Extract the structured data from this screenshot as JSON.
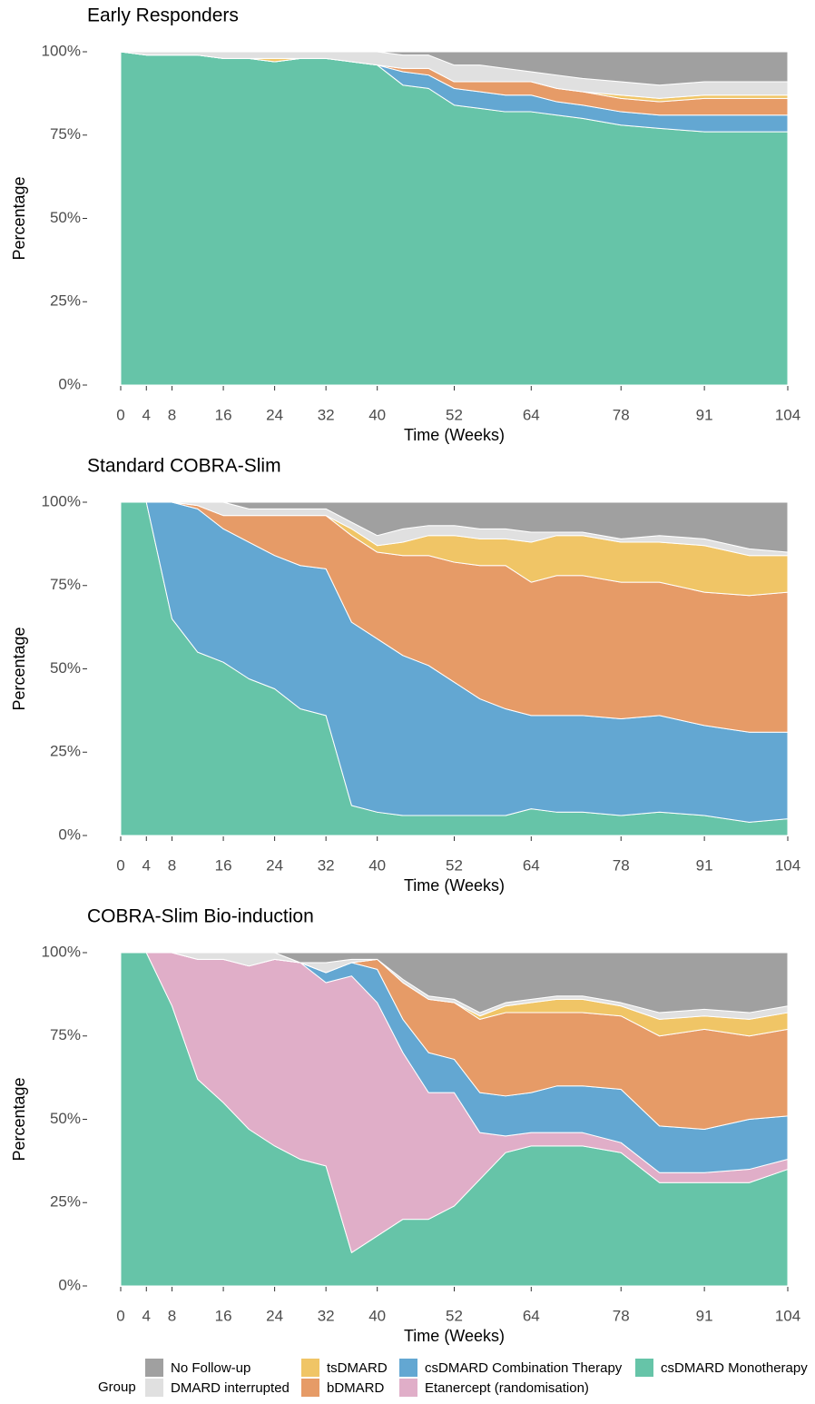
{
  "chart_data": [
    {
      "type": "area",
      "title": "Early Responders",
      "x_label": "Time (Weeks)",
      "y_label": "Percentage",
      "x": [
        0,
        4,
        8,
        12,
        16,
        20,
        24,
        28,
        32,
        36,
        40,
        44,
        48,
        52,
        56,
        60,
        64,
        68,
        72,
        78,
        84,
        91,
        98,
        104
      ],
      "xlim": [
        0,
        104
      ],
      "xticks": [
        0,
        4,
        8,
        16,
        24,
        32,
        40,
        52,
        64,
        78,
        91,
        104
      ],
      "ylim": [
        0,
        100
      ],
      "yticks": [
        {
          "value": 0,
          "label": "0%"
        },
        {
          "value": 25,
          "label": "25%"
        },
        {
          "value": 50,
          "label": "50%"
        },
        {
          "value": 75,
          "label": "75%"
        },
        {
          "value": 100,
          "label": "100%"
        }
      ],
      "series": [
        {
          "name": "No Follow-up",
          "color": "#a0a0a0",
          "values": [
            0,
            0,
            0,
            0,
            0,
            0,
            0,
            0,
            0,
            0,
            0,
            1,
            1,
            4,
            4,
            5,
            6,
            7,
            8,
            9,
            10,
            9,
            9,
            9
          ]
        },
        {
          "name": "DMARD interrupted",
          "color": "#e0e0e0",
          "values": [
            0,
            1,
            1,
            1,
            2,
            2,
            2,
            2,
            2,
            3,
            4,
            4,
            4,
            5,
            5,
            4,
            3,
            4,
            4,
            4,
            4,
            4,
            4,
            4
          ]
        },
        {
          "name": "tsDMARD",
          "color": "#f0c566",
          "values": [
            0,
            0,
            0,
            0,
            0,
            0,
            1,
            0,
            0,
            0,
            0,
            0,
            0,
            0,
            0,
            0,
            0,
            0,
            0,
            1,
            1,
            1,
            1,
            1
          ]
        },
        {
          "name": "bDMARD",
          "color": "#e69b67",
          "values": [
            0,
            0,
            0,
            0,
            0,
            0,
            0,
            0,
            0,
            0,
            0,
            1,
            2,
            2,
            3,
            4,
            4,
            4,
            4,
            4,
            4,
            5,
            5,
            5
          ]
        },
        {
          "name": "csDMARD Combination Therapy",
          "color": "#63a7d2",
          "values": [
            0,
            0,
            0,
            0,
            0,
            0,
            0,
            0,
            0,
            0,
            0,
            4,
            4,
            5,
            5,
            5,
            5,
            4,
            4,
            4,
            4,
            5,
            5,
            5
          ]
        },
        {
          "name": "csDMARD Monotherapy",
          "color": "#66c4a8",
          "values": [
            100,
            99,
            99,
            99,
            98,
            98,
            97,
            98,
            98,
            97,
            96,
            90,
            89,
            84,
            83,
            82,
            82,
            81,
            80,
            78,
            77,
            76,
            76,
            76
          ]
        }
      ]
    },
    {
      "type": "area",
      "title": "Standard COBRA-Slim",
      "x_label": "Time (Weeks)",
      "y_label": "Percentage",
      "x": [
        0,
        4,
        8,
        12,
        16,
        20,
        24,
        28,
        32,
        36,
        40,
        44,
        48,
        52,
        56,
        60,
        64,
        68,
        72,
        78,
        84,
        91,
        98,
        104
      ],
      "xlim": [
        0,
        104
      ],
      "xticks": [
        0,
        4,
        8,
        16,
        24,
        32,
        40,
        52,
        64,
        78,
        91,
        104
      ],
      "ylim": [
        0,
        100
      ],
      "yticks": [
        {
          "value": 0,
          "label": "0%"
        },
        {
          "value": 25,
          "label": "25%"
        },
        {
          "value": 50,
          "label": "50%"
        },
        {
          "value": 75,
          "label": "75%"
        },
        {
          "value": 100,
          "label": "100%"
        }
      ],
      "series": [
        {
          "name": "No Follow-up",
          "color": "#a0a0a0",
          "values": [
            0,
            0,
            0,
            0,
            0,
            2,
            2,
            2,
            2,
            6,
            10,
            8,
            7,
            7,
            8,
            8,
            9,
            9,
            9,
            11,
            10,
            11,
            14,
            15
          ]
        },
        {
          "name": "DMARD interrupted",
          "color": "#e0e0e0",
          "values": [
            0,
            0,
            0,
            1,
            4,
            2,
            2,
            2,
            2,
            2,
            3,
            4,
            3,
            3,
            3,
            3,
            3,
            1,
            1,
            1,
            2,
            2,
            2,
            1
          ]
        },
        {
          "name": "tsDMARD",
          "color": "#f0c566",
          "values": [
            0,
            0,
            0,
            0,
            0,
            0,
            0,
            0,
            0,
            2,
            2,
            4,
            6,
            8,
            8,
            8,
            12,
            12,
            12,
            12,
            12,
            14,
            12,
            11
          ]
        },
        {
          "name": "bDMARD",
          "color": "#e69b67",
          "values": [
            0,
            0,
            0,
            1,
            4,
            8,
            12,
            15,
            16,
            26,
            26,
            30,
            33,
            36,
            40,
            43,
            40,
            42,
            42,
            41,
            40,
            40,
            41,
            42
          ]
        },
        {
          "name": "csDMARD Combination Therapy",
          "color": "#63a7d2",
          "values": [
            0,
            0,
            35,
            43,
            40,
            41,
            40,
            43,
            44,
            55,
            52,
            48,
            45,
            40,
            35,
            32,
            28,
            29,
            29,
            29,
            29,
            27,
            27,
            26
          ]
        },
        {
          "name": "csDMARD Monotherapy",
          "color": "#66c4a8",
          "values": [
            100,
            100,
            65,
            55,
            52,
            47,
            44,
            38,
            36,
            9,
            7,
            6,
            6,
            6,
            6,
            6,
            8,
            7,
            7,
            6,
            7,
            6,
            4,
            5
          ]
        }
      ]
    },
    {
      "type": "area",
      "title": "COBRA-Slim Bio-induction",
      "x_label": "Time (Weeks)",
      "y_label": "Percentage",
      "legend_title": "Group",
      "x": [
        0,
        4,
        8,
        12,
        16,
        20,
        24,
        28,
        32,
        36,
        40,
        44,
        48,
        52,
        56,
        60,
        64,
        68,
        72,
        78,
        84,
        91,
        98,
        104
      ],
      "xlim": [
        0,
        104
      ],
      "xticks": [
        0,
        4,
        8,
        16,
        24,
        32,
        40,
        52,
        64,
        78,
        91,
        104
      ],
      "ylim": [
        0,
        100
      ],
      "yticks": [
        {
          "value": 0,
          "label": "0%"
        },
        {
          "value": 25,
          "label": "25%"
        },
        {
          "value": 50,
          "label": "50%"
        },
        {
          "value": 75,
          "label": "75%"
        },
        {
          "value": 100,
          "label": "100%"
        }
      ],
      "series": [
        {
          "name": "No Follow-up",
          "color": "#a0a0a0",
          "values": [
            0,
            0,
            0,
            0,
            0,
            0,
            0,
            3,
            3,
            2,
            2,
            8,
            13,
            14,
            18,
            15,
            14,
            13,
            13,
            15,
            18,
            17,
            18,
            16
          ]
        },
        {
          "name": "DMARD interrupted",
          "color": "#e0e0e0",
          "values": [
            0,
            0,
            0,
            2,
            2,
            4,
            2,
            0,
            3,
            1,
            0,
            1,
            1,
            1,
            1,
            1,
            1,
            1,
            1,
            1,
            2,
            2,
            2,
            2
          ]
        },
        {
          "name": "tsDMARD",
          "color": "#f0c566",
          "values": [
            0,
            0,
            0,
            0,
            0,
            0,
            0,
            0,
            0,
            0,
            0,
            0,
            0,
            0,
            1,
            2,
            3,
            4,
            4,
            3,
            5,
            4,
            5,
            5
          ]
        },
        {
          "name": "bDMARD",
          "color": "#e69b67",
          "values": [
            0,
            0,
            0,
            0,
            0,
            0,
            0,
            0,
            0,
            0,
            3,
            11,
            16,
            17,
            22,
            25,
            24,
            22,
            22,
            22,
            27,
            30,
            25,
            26
          ]
        },
        {
          "name": "csDMARD Combination Therapy",
          "color": "#63a7d2",
          "values": [
            0,
            0,
            0,
            0,
            0,
            0,
            0,
            0,
            3,
            4,
            10,
            10,
            12,
            10,
            12,
            12,
            12,
            14,
            14,
            16,
            14,
            13,
            15,
            13
          ]
        },
        {
          "name": "Etanercept (randomisation)",
          "color": "#e0aec8",
          "values": [
            0,
            0,
            16,
            36,
            43,
            49,
            56,
            59,
            55,
            83,
            70,
            50,
            38,
            34,
            14,
            5,
            4,
            4,
            4,
            3,
            3,
            3,
            4,
            3
          ]
        },
        {
          "name": "csDMARD Monotherapy",
          "color": "#66c4a8",
          "values": [
            100,
            100,
            84,
            62,
            55,
            47,
            42,
            38,
            36,
            10,
            15,
            20,
            20,
            24,
            32,
            40,
            42,
            42,
            42,
            40,
            31,
            31,
            31,
            35
          ]
        }
      ]
    }
  ]
}
